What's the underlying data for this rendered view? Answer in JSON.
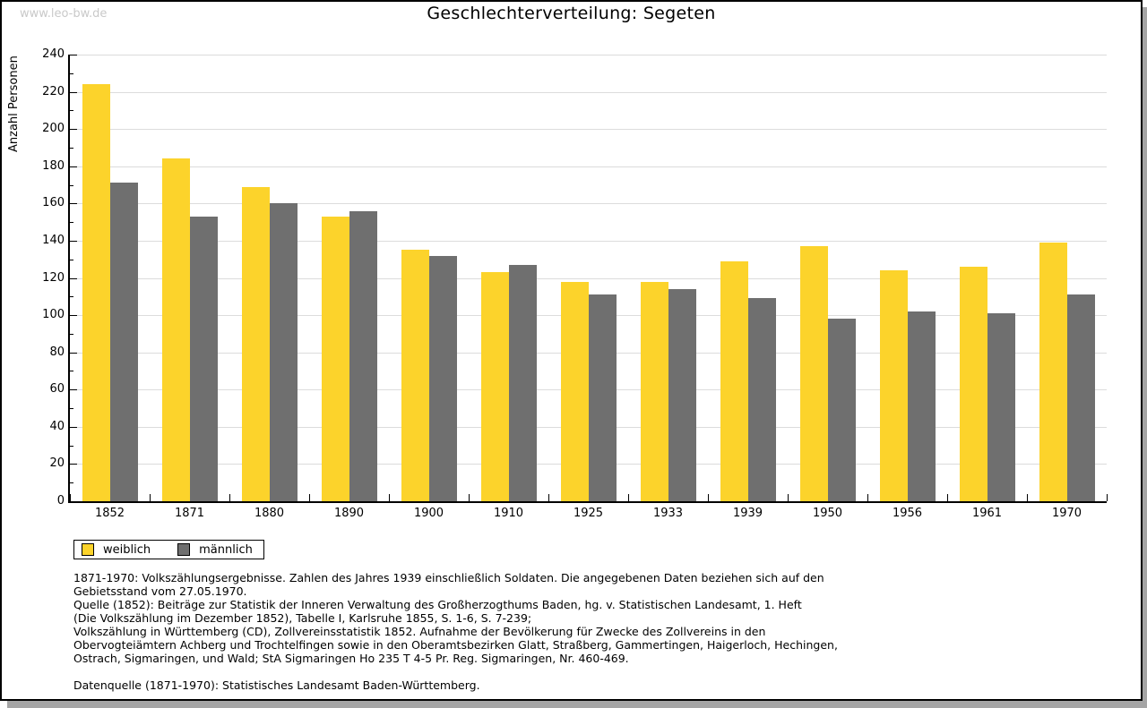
{
  "watermark": "www.leo-bw.de",
  "title": "Geschlechterverteilung: Segeten",
  "colors": {
    "weiblich": "#fcd32b",
    "maennlich": "#6f6f6f",
    "gridline": "#dcdcdc",
    "axis": "#000000",
    "watermark": "#c9c9c9",
    "shadow": "#a5a5a5"
  },
  "legend": {
    "items": [
      {
        "label": "weiblich",
        "color": "#fcd32b"
      },
      {
        "label": "männlich",
        "color": "#6f6f6f"
      }
    ]
  },
  "chart_data": {
    "type": "bar",
    "title": "Geschlechterverteilung: Segeten",
    "xlabel": "",
    "ylabel": "Anzahl Personen",
    "ylim": [
      0,
      240
    ],
    "ytick_step": 20,
    "ytick_minor_step": 10,
    "grid": true,
    "legend_position": "bottom-left",
    "categories": [
      "1852",
      "1871",
      "1880",
      "1890",
      "1900",
      "1910",
      "1925",
      "1933",
      "1939",
      "1950",
      "1956",
      "1961",
      "1970"
    ],
    "series": [
      {
        "name": "weiblich",
        "color": "#fcd32b",
        "values": [
          224,
          184,
          169,
          153,
          135,
          123,
          118,
          118,
          129,
          137,
          124,
          126,
          139
        ]
      },
      {
        "name": "männlich",
        "color": "#6f6f6f",
        "values": [
          171,
          153,
          160,
          156,
          132,
          127,
          111,
          114,
          109,
          98,
          102,
          101,
          111
        ]
      }
    ]
  },
  "footer_lines": [
    "1871-1970: Volkszählungsergebnisse. Zahlen des Jahres 1939 einschließlich Soldaten. Die angegebenen Daten beziehen sich auf den",
    "Gebietsstand vom 27.05.1970.",
    "Quelle (1852): Beiträge zur Statistik der Inneren Verwaltung des Großherzogthums Baden, hg. v. Statistischen Landesamt, 1. Heft",
    "(Die Volkszählung im Dezember 1852), Tabelle I, Karlsruhe 1855, S. 1-6, S. 7-239;",
    "Volkszählung in Württemberg (CD), Zollvereinsstatistik 1852. Aufnahme der Bevölkerung für Zwecke des Zollvereins in den",
    "Obervogteiämtern Achberg und Trochtelfingen sowie in den Oberamtsbezirken Glatt, Straßberg, Gammertingen, Haigerloch, Hechingen,",
    "Ostrach, Sigmaringen, und Wald; StA Sigmaringen Ho 235 T 4-5 Pr. Reg. Sigmaringen, Nr. 460-469.",
    "",
    "Datenquelle (1871-1970): Statistisches Landesamt Baden-Württemberg."
  ]
}
